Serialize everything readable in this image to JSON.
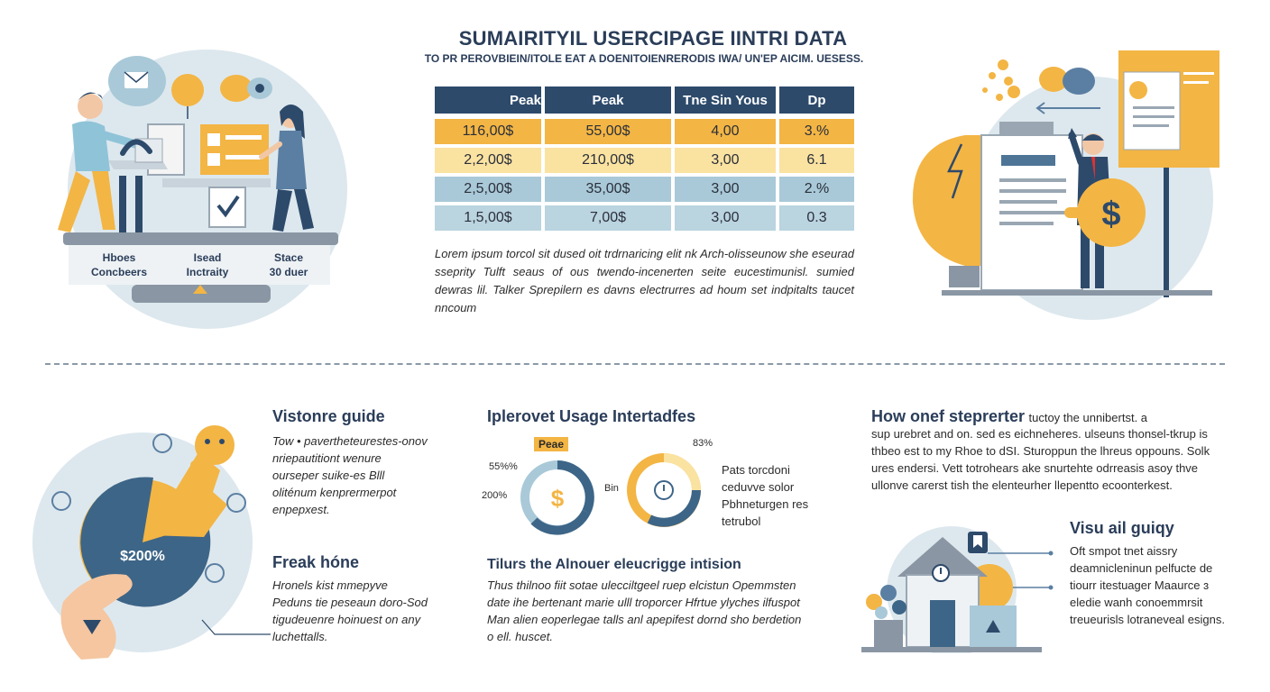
{
  "header": {
    "title": "SUMAIRITYIL USERCIPAGE IINTRI DATA",
    "subtitle": "TO PR PEROVBIEIN/ITOLE EAT A DOENITOIENRERODIS IWA/ UN'EP AICIM. UESESS."
  },
  "table": {
    "headers": [
      "Peak",
      "Peak",
      "Tne Sin Yous",
      "Dp"
    ],
    "rows": [
      [
        "116,00$",
        "55,00$",
        "4,00",
        "3.%"
      ],
      [
        "2,2,00$",
        "210,00$",
        "3,00",
        "6.1"
      ],
      [
        "2,5,00$",
        "35,00$",
        "3,00",
        "2.%"
      ],
      [
        "1,5,00$",
        "7,00$",
        "3,00",
        "0.3"
      ]
    ]
  },
  "intro_paragraph": "Lorem ipsum torcol sit dused oit trdrnaricing elit nk Arch-olisseunow she eseurad sseprity Tulft seaus of ous twendo-incenerten seite eucestimunisl. sumied dewras lil. Talker Sprepilern es davns electrurres ad houm set indpitalts taucet nncoum",
  "left_illustration": {
    "stages": [
      {
        "line1": "Hboes",
        "line2": "Concbeers"
      },
      {
        "line1": "Isead",
        "line2": "Inctraity"
      },
      {
        "line1": "Stace",
        "line2": "30 duer"
      }
    ]
  },
  "visitor_guide": {
    "title": "Vistonre guide",
    "text": "Tow • pavertheteurestes-onov nriepautitiont wenure ourseper suike-es Blll oliténum kenprermerpot enpepxest."
  },
  "freak_hone": {
    "title": "Freak hóne",
    "text": "Hronels kist mmepyve Peduns tie peseaun doro-Sod tigudeuenre hoinuest on any luchettalls."
  },
  "pie": {
    "label": "$200%"
  },
  "usage": {
    "title": "Iplerovet Usage Intertadfes",
    "badge": "Peae",
    "donut_left_labels": [
      "55%%",
      "200%"
    ],
    "donut_right_labels": [
      "83%",
      "Bin"
    ],
    "side_text": "Pats torcdoni ceduvve solor Pbhneturgen res tetrubol",
    "sub_title": "Tilurs the Alnouer eleucrigge intision",
    "sub_text": "Thus thilnoo fiit sotae ulecciltgeel ruep elcistun Opemmsten date ihe bertenant marie ulll troporcer Hfrtue ylyches ilfuspot Man alien eoperlegae talls anl apepifest dornd sho berdetion o ell. huscet."
  },
  "how_stepper": {
    "title": "How onef steprerter",
    "title_tail": "tuctoy the unnibertst. a",
    "text": "sup urebret and on. sed es eichneheres. ulseuns thonsel-tkrup is thbeo est to my Rhoe to dSI. Sturoppun the lhreus oppouns. Solk ures endersi. Vett totrohears ake snurtehte odrreasis asoy thve ullonve carerst tish the elenteurher llepentto ecoonterkest."
  },
  "visual_guide": {
    "title": "Visu ail guiqy",
    "text": "Oft smpot tnet aissry deamnicleninun pelfucte de tiourr itestuager Maaurce ɜ eledie wanh conoemmrsit treueurisls lotraneveal esigns."
  },
  "colors": {
    "navy": "#2d4a6b",
    "amber": "#f3b544",
    "cream": "#fae2a1",
    "light_blue": "#a9c9d8",
    "pale_bg": "#dde8ee"
  }
}
